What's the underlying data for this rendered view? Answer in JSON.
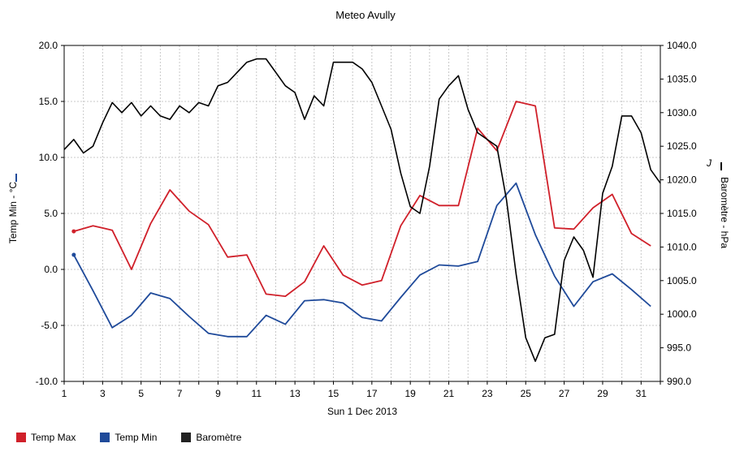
{
  "chart_data": {
    "type": "line",
    "title": "Meteo  Avully",
    "xlabel": "Sun 1 Dec 2013",
    "ylabel_left": "Temp Min - °C",
    "ylabel_right": "Baromètre - hPa",
    "right_axis_marker": "J",
    "xlim": [
      1,
      32
    ],
    "ylim_left": [
      -10,
      20
    ],
    "ylim_right": [
      990,
      1040
    ],
    "x_ticks": [
      1,
      3,
      5,
      7,
      9,
      11,
      13,
      15,
      17,
      19,
      21,
      23,
      25,
      27,
      29,
      31
    ],
    "y_ticks_left": [
      "-10.0",
      "-5.0",
      "0.0",
      "5.0",
      "10.0",
      "15.0",
      "20.0"
    ],
    "y_ticks_right": [
      "990.0",
      "995.0",
      "1000.0",
      "1005.0",
      "1010.0",
      "1015.0",
      "1020.0",
      "1025.0",
      "1030.0",
      "1035.0",
      "1040.0"
    ],
    "grid": true,
    "legend_position": "bottom-left",
    "series": [
      {
        "name": "Temp Max",
        "axis": "left",
        "color": "#d0202a",
        "x": [
          1.5,
          2.5,
          3.5,
          4.5,
          5.5,
          6.5,
          7.5,
          8.5,
          9.5,
          10.5,
          11.5,
          12.5,
          13.5,
          14.5,
          15.5,
          16.5,
          17.5,
          18.5,
          19.5,
          20.5,
          21.5,
          22.5,
          23.5,
          24.5,
          25.5,
          26.5,
          27.5,
          28.5,
          29.5,
          30.5,
          31.5
        ],
        "values": [
          3.4,
          3.9,
          3.5,
          0.0,
          4.1,
          7.1,
          5.2,
          4.0,
          1.1,
          1.3,
          -2.2,
          -2.4,
          -1.1,
          2.1,
          -0.5,
          -1.4,
          -1.0,
          3.9,
          6.6,
          5.7,
          5.7,
          12.6,
          10.6,
          15.0,
          14.6,
          3.7,
          3.6,
          5.5,
          6.7,
          3.2,
          2.1
        ]
      },
      {
        "name": "Temp Min",
        "axis": "left",
        "color": "#1f4a9a",
        "x": [
          1.5,
          2.5,
          3.5,
          4.5,
          5.5,
          6.5,
          7.5,
          8.5,
          9.5,
          10.5,
          11.5,
          12.5,
          13.5,
          14.5,
          15.5,
          16.5,
          17.5,
          18.5,
          19.5,
          20.5,
          21.5,
          22.5,
          23.5,
          24.5,
          25.5,
          26.5,
          27.5,
          28.5,
          29.5,
          30.5,
          31.5
        ],
        "values": [
          1.3,
          -1.9,
          -5.2,
          -4.1,
          -2.1,
          -2.6,
          -4.2,
          -5.7,
          -6.0,
          -6.0,
          -4.1,
          -4.9,
          -2.8,
          -2.7,
          -3.0,
          -4.3,
          -4.6,
          -2.5,
          -0.5,
          0.4,
          0.3,
          0.7,
          5.7,
          7.7,
          3.1,
          -0.6,
          -3.3,
          -1.1,
          -0.4,
          -1.8,
          -3.3
        ]
      },
      {
        "name": "Baromètre",
        "axis": "right",
        "color": "#000000",
        "x": [
          1.0,
          1.5,
          2.0,
          2.5,
          3.0,
          3.5,
          4.0,
          4.5,
          5.0,
          5.5,
          6.0,
          6.5,
          7.0,
          7.5,
          8.0,
          8.5,
          9.0,
          9.5,
          10.0,
          10.5,
          11.0,
          11.5,
          12.0,
          12.5,
          13.0,
          13.5,
          14.0,
          14.5,
          15.0,
          15.5,
          16.0,
          16.5,
          17.0,
          17.5,
          18.0,
          18.5,
          19.0,
          19.5,
          20.0,
          20.5,
          21.0,
          21.5,
          22.0,
          22.5,
          23.0,
          23.5,
          24.0,
          24.5,
          25.0,
          25.5,
          26.0,
          26.5,
          27.0,
          27.5,
          28.0,
          28.5,
          29.0,
          29.5,
          30.0,
          30.5,
          31.0,
          31.5,
          32.0
        ],
        "values": [
          1024.5,
          1026.0,
          1024.0,
          1025.0,
          1028.5,
          1031.5,
          1030.0,
          1031.5,
          1029.5,
          1031.0,
          1029.5,
          1029.0,
          1031.0,
          1030.0,
          1031.5,
          1031.0,
          1034.0,
          1034.5,
          1036.0,
          1037.5,
          1038.0,
          1038.0,
          1036.0,
          1034.0,
          1033.0,
          1029.0,
          1032.5,
          1031.0,
          1037.5,
          1037.5,
          1037.5,
          1036.5,
          1034.5,
          1031.0,
          1027.5,
          1021.0,
          1016.0,
          1015.0,
          1022.0,
          1032.0,
          1034.0,
          1035.5,
          1030.5,
          1027.0,
          1026.0,
          1025.0,
          1017.0,
          1006.0,
          996.5,
          993.0,
          996.5,
          997.0,
          1008.0,
          1011.5,
          1009.5,
          1005.5,
          1018.0,
          1022.0,
          1029.5,
          1029.5,
          1027.0,
          1021.5,
          1019.5
        ]
      }
    ]
  },
  "legend": [
    {
      "label": "Temp Max",
      "color": "#d0202a"
    },
    {
      "label": "Temp Min",
      "color": "#1f4a9a"
    },
    {
      "label": "Baromètre",
      "color": "#222222"
    }
  ]
}
